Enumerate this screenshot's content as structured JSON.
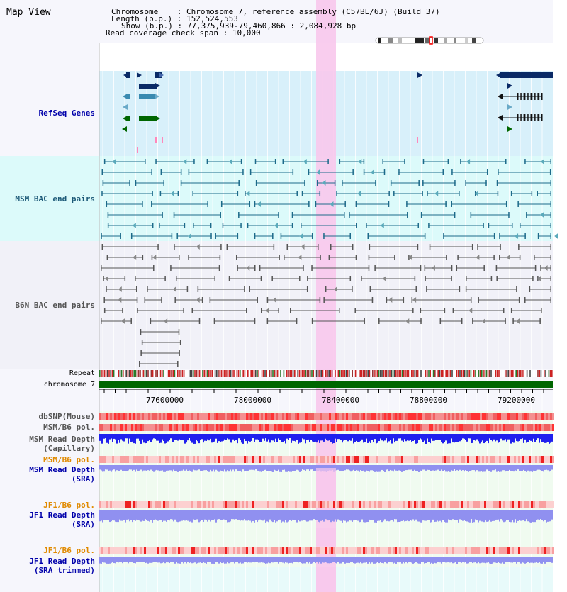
{
  "window": {
    "title": "Map View"
  },
  "header": {
    "rows": [
      {
        "key": "Chromosome",
        "value": "Chromosome 7, reference assembly (C57BL/6J) (Build 37)"
      },
      {
        "key": "Length (b.p.)",
        "value": "152,524,553"
      },
      {
        "key": "Show (b.p.)",
        "value": "77,375,939-79,460,866 : 2,084,928 bp"
      },
      {
        "key": "Read coverage check span",
        "value": "10,000"
      }
    ]
  },
  "tracks": {
    "refseq": {
      "label": "RefSeq Genes"
    },
    "msm_bac": {
      "label": "MSM BAC end pairs"
    },
    "b6n_bac": {
      "label": "B6N BAC end pairs"
    },
    "repeat": {
      "label": "Repeat"
    },
    "chromosome": {
      "label": "chromosome 7"
    },
    "dbsnp": {
      "label": "dbSNP(Mouse)"
    },
    "msm_b6_pol_1": {
      "label": "MSM/B6 pol."
    },
    "msm_depth_cap": {
      "label_1": "MSM Read Depth",
      "label_2": "(Capillary)"
    },
    "msm_b6_pol_2": {
      "label": "MSM/B6 pol."
    },
    "msm_depth_sra": {
      "label_1": "MSM Read Depth",
      "label_2": "(SRA)"
    },
    "jf1_b6_pol_1": {
      "label": "JF1/B6 pol."
    },
    "jf1_depth_sra": {
      "label_1": "JF1 Read Depth",
      "label_2": "(SRA)"
    },
    "jf1_b6_pol_2": {
      "label": "JF1/B6 pol."
    },
    "jf1_depth_trim": {
      "label_1": "JF1 Read Depth",
      "label_2": "(SRA trimmed)"
    }
  },
  "axis": {
    "ticks": [
      "77600000",
      "78000000",
      "78400000",
      "78800000",
      "79200000"
    ],
    "range_bp": [
      77375939,
      79460866
    ]
  },
  "colors": {
    "highlight": "#f8c8ec",
    "refseq_bg": "#d8f0fa",
    "msm_bg": "#dcfafa",
    "track_label_blue": "#0000aa",
    "track_label_orange": "#e08a00",
    "chromosome_bar": "#006600",
    "depth_blue": "#2020ee",
    "depth_light": "#9090f0"
  }
}
